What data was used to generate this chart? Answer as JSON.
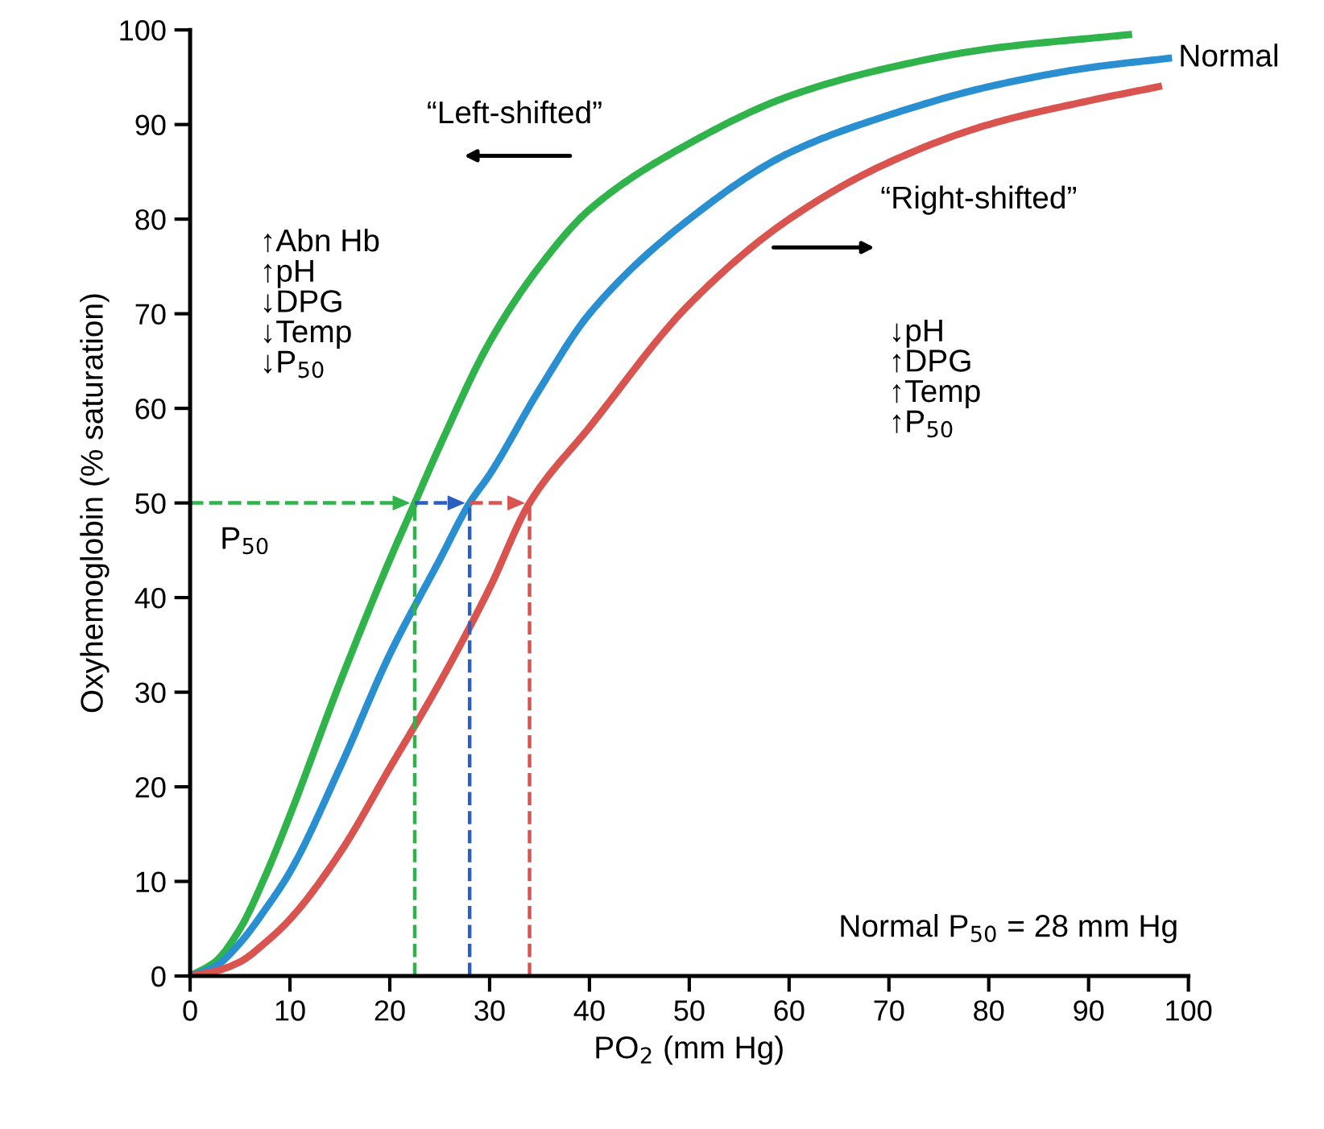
{
  "chart_data": {
    "type": "line",
    "xlabel": "PO$_{2}$ (mm Hg)",
    "ylabel": "Oxyhemoglobin (% saturation)",
    "xlim": [
      0,
      100
    ],
    "ylim": [
      0,
      100
    ],
    "xticks": [
      0,
      10,
      20,
      30,
      40,
      50,
      60,
      70,
      80,
      90,
      100
    ],
    "yticks": [
      0,
      10,
      20,
      30,
      40,
      50,
      60,
      70,
      80,
      90,
      100
    ],
    "grid": false,
    "legend": false,
    "series": [
      {
        "color": "#2fb34a",
        "x": [
          0,
          2.5,
          5,
          7.5,
          10,
          15,
          20,
          22.5,
          25,
          30,
          35,
          40,
          50,
          60,
          70,
          80,
          94
        ],
        "values": [
          0,
          1.5,
          5,
          10.5,
          17,
          31,
          44,
          50,
          56,
          67,
          75,
          81,
          88,
          93,
          96,
          98,
          99.5
        ]
      },
      {
        "name": "Normal",
        "color": "#2a8fd0",
        "x": [
          0,
          2.5,
          5,
          7.5,
          10,
          15,
          20,
          25,
          28,
          30,
          35,
          40,
          50,
          60,
          70,
          80,
          90,
          98
        ],
        "values": [
          0,
          1,
          3.5,
          7,
          11,
          22,
          34,
          44,
          50,
          53,
          62,
          70,
          80,
          87,
          91,
          94,
          96,
          97
        ]
      },
      {
        "color": "#d9534f",
        "x": [
          0,
          2.5,
          5,
          7.5,
          10,
          15,
          20,
          25,
          30,
          34,
          40,
          50,
          60,
          70,
          80,
          90,
          97
        ],
        "values": [
          0,
          0.5,
          1.5,
          3.5,
          6,
          13,
          22,
          31,
          41,
          50,
          58,
          71,
          80,
          86,
          90,
          92.5,
          94
        ]
      },
      {
        "color": "#2fb34a",
        "line_style": "dashed",
        "x": [
          22.5,
          22.5
        ],
        "values": [
          0,
          50
        ]
      },
      {
        "color": "#2a5fc0",
        "line_style": "dashed",
        "x": [
          28,
          28
        ],
        "values": [
          0,
          50
        ]
      },
      {
        "color": "#d9534f",
        "line_style": "dashed",
        "x": [
          34,
          34
        ],
        "values": [
          0,
          50
        ]
      }
    ],
    "annotations": [
      "“Left-shifted”",
      "“Right-shifted”",
      "↑Abn Hb\n↑pH\n↓DPG\n↓Temp\n↓P$_{50}$",
      "↓pH\n↑DPG\n↑Temp\n↑P$_{50}$",
      "P$_{50}$",
      "Normal P$_{50}$ = 28 mm Hg"
    ]
  }
}
